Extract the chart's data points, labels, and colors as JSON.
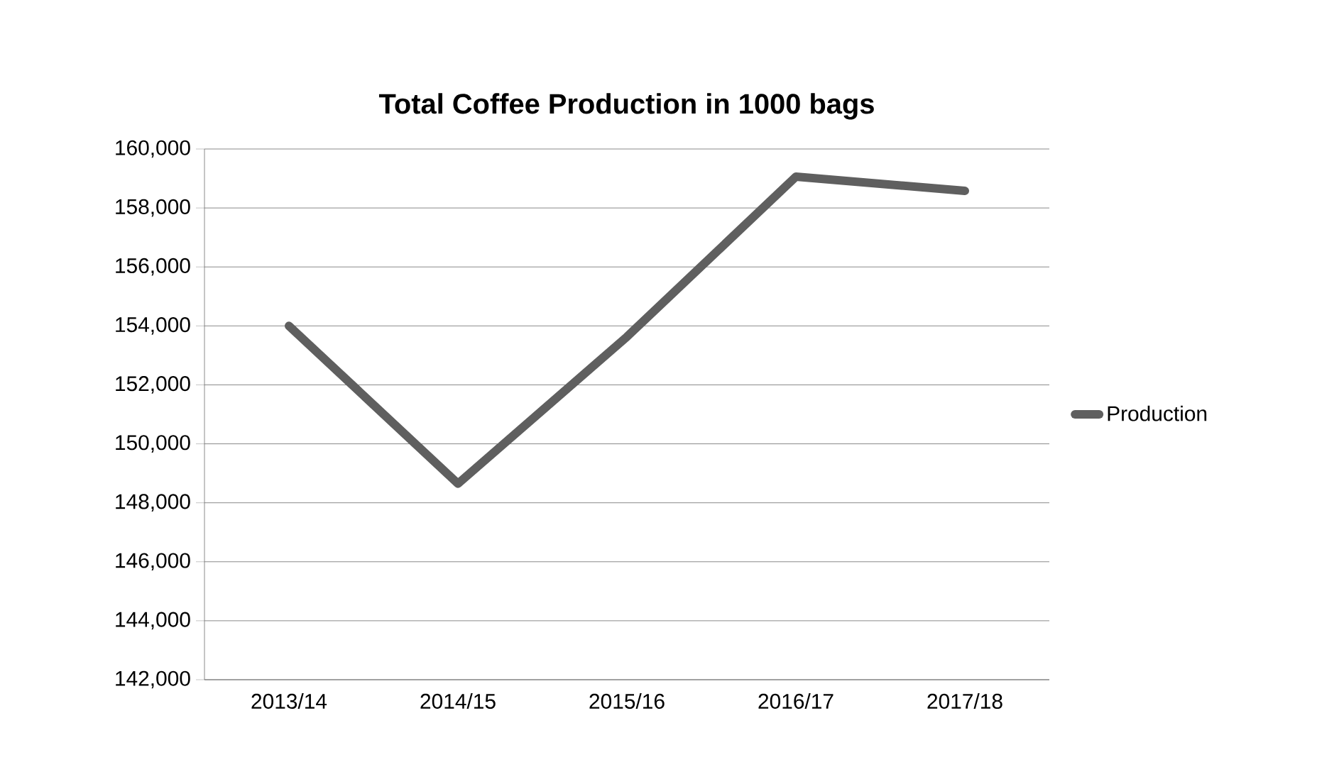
{
  "chart_data": {
    "type": "line",
    "title": "Total Coffee Production in 1000 bags",
    "categories": [
      "2013/14",
      "2014/15",
      "2015/16",
      "2016/17",
      "2017/18"
    ],
    "series": [
      {
        "name": "Production",
        "color": "#5f5f5f",
        "values": [
          154000,
          148650,
          153630,
          159060,
          158580
        ]
      }
    ],
    "ylim": [
      142000,
      160000
    ],
    "yticks": [
      {
        "value": 142000,
        "label": "142,000"
      },
      {
        "value": 144000,
        "label": "144,000"
      },
      {
        "value": 146000,
        "label": "146,000"
      },
      {
        "value": 148000,
        "label": "148,000"
      },
      {
        "value": 150000,
        "label": "150,000"
      },
      {
        "value": 152000,
        "label": "152,000"
      },
      {
        "value": 154000,
        "label": "154,000"
      },
      {
        "value": 156000,
        "label": "156,000"
      },
      {
        "value": 158000,
        "label": "158,000"
      },
      {
        "value": 160000,
        "label": "160,000"
      }
    ],
    "grid": "y",
    "legend": "right",
    "marker": "none",
    "line_style": "solid"
  }
}
